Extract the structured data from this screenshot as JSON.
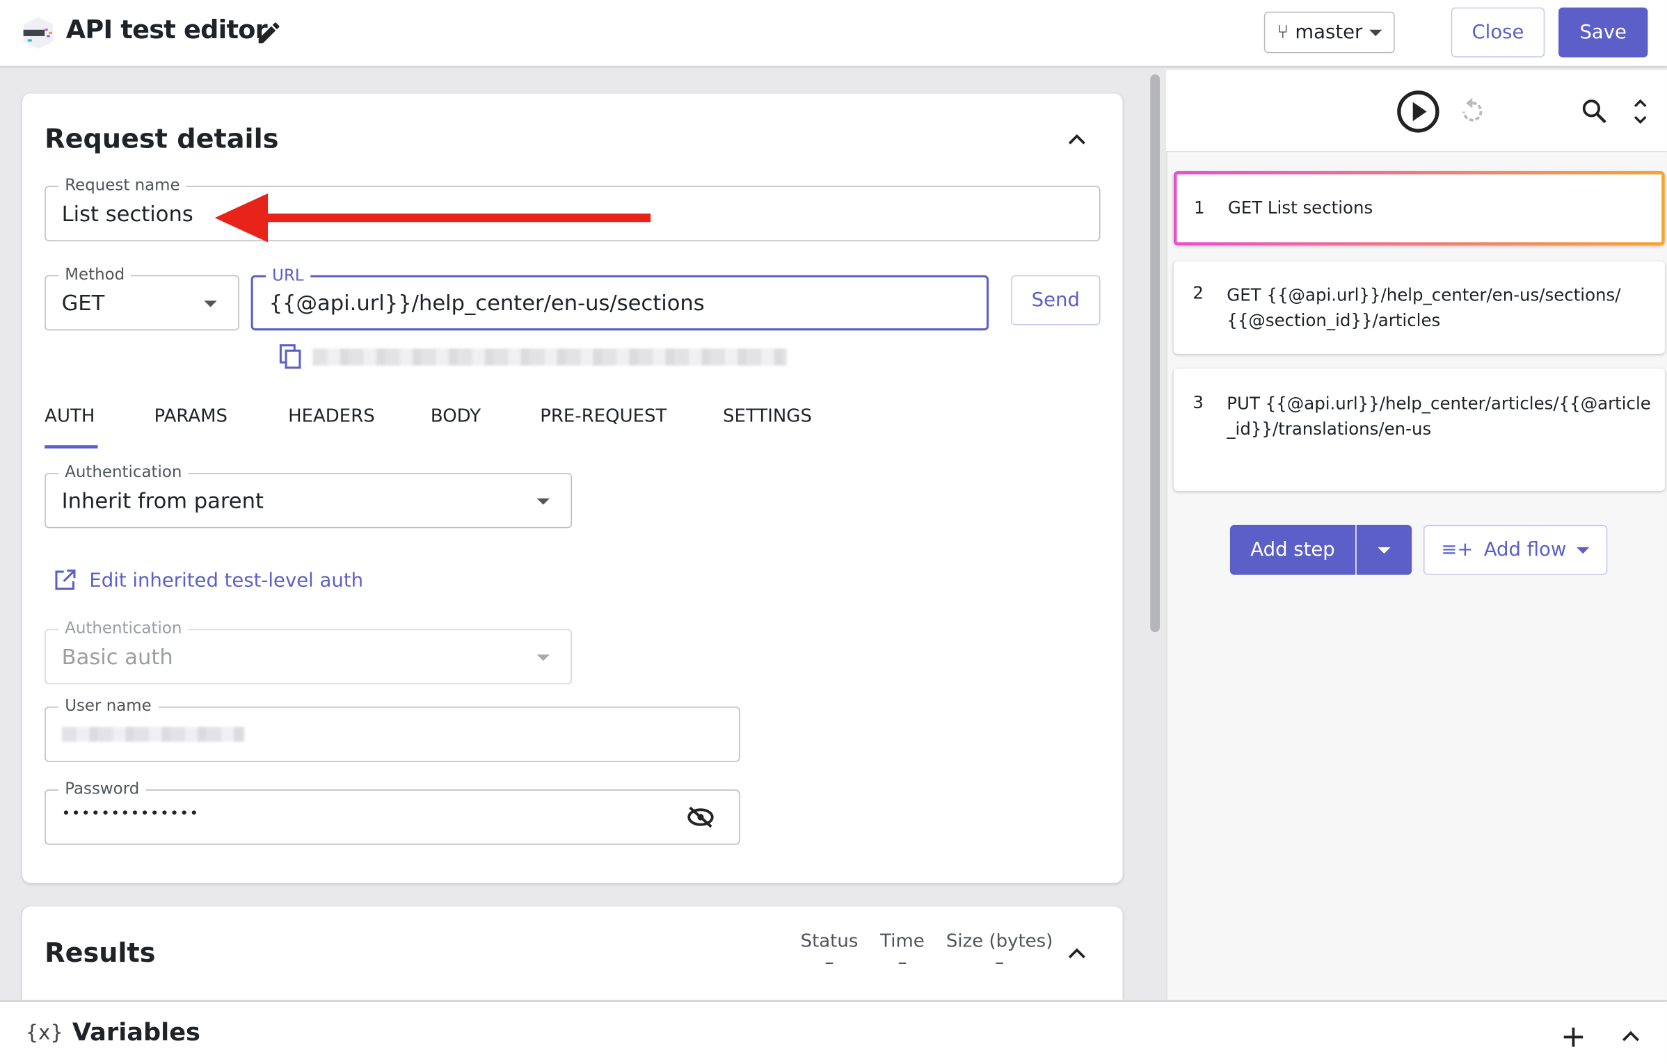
{
  "header": {
    "title": "API test editor",
    "branch": "master",
    "close_label": "Close",
    "save_label": "Save"
  },
  "request": {
    "section_title": "Request details",
    "name_label": "Request name",
    "name_value": "List sections",
    "method_label": "Method",
    "method_value": "GET",
    "url_label": "URL",
    "url_value": "{{@api.url}}/help_center/en-us/sections",
    "send_label": "Send",
    "tabs": [
      "AUTH",
      "PARAMS",
      "HEADERS",
      "BODY",
      "PRE-REQUEST",
      "SETTINGS"
    ],
    "active_tab": "AUTH",
    "auth_label": "Authentication",
    "auth_value": "Inherit from parent",
    "edit_link": "Edit inherited test-level auth",
    "inherited_auth_label": "Authentication",
    "inherited_auth_value": "Basic auth",
    "username_label": "User name",
    "password_label": "Password",
    "password_value": "••••••••••••••"
  },
  "results": {
    "title": "Results",
    "columns": [
      {
        "label": "Status",
        "value": "–"
      },
      {
        "label": "Time",
        "value": "–"
      },
      {
        "label": "Size (bytes)",
        "value": "–"
      }
    ]
  },
  "steps": [
    {
      "num": "1",
      "text": "GET List sections"
    },
    {
      "num": "2",
      "text": "GET {{@api.url}}/help_center/en-us/sections/{{@section_id}}/articles"
    },
    {
      "num": "3",
      "text": "PUT {{@api.url}}/help_center/articles/{{@article_id}}/translations/en-us"
    }
  ],
  "actions": {
    "add_step": "Add step",
    "add_flow": "Add flow"
  },
  "variables": {
    "icon_text": "{x}",
    "title": "Variables"
  },
  "colors": {
    "accent": "#5b5fc7",
    "annotation_arrow": "#e8231a"
  }
}
